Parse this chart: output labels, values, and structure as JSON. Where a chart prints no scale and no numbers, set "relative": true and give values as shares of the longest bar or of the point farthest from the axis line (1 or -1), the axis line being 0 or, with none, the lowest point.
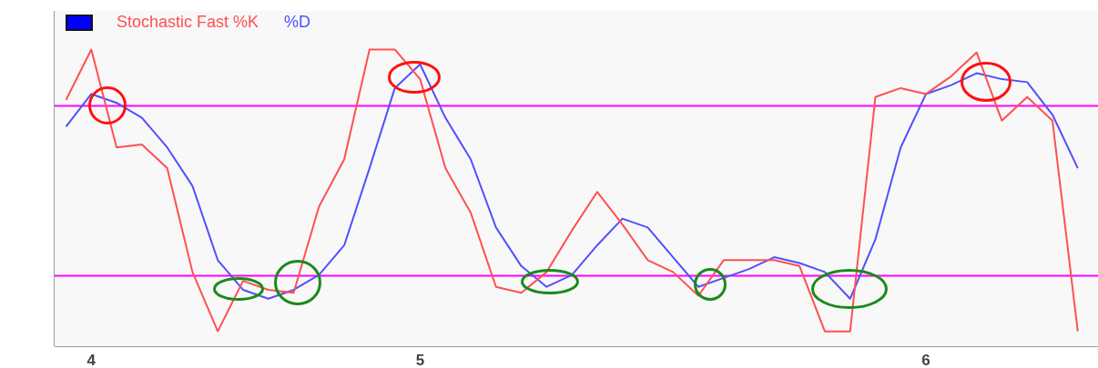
{
  "chart_data": {
    "type": "line",
    "relative": true,
    "legend": "top left",
    "marker": "none",
    "line_style": "solid",
    "categories": [
      null,
      "4",
      null,
      null,
      null,
      null,
      null,
      null,
      null,
      null,
      null,
      null,
      null,
      null,
      "5",
      null,
      null,
      null,
      null,
      null,
      null,
      null,
      null,
      null,
      null,
      null,
      null,
      null,
      null,
      null,
      null,
      null,
      null,
      null,
      "6",
      null,
      null,
      null,
      null,
      null,
      null
    ],
    "series": [
      {
        "name": "Stochastic Fast %K",
        "color": "#ff5050",
        "values": [
          0.83,
          1,
          0.67,
          0.68,
          0.6,
          0.25,
          0.05,
          0.22,
          0.19,
          0.18,
          0.47,
          0.63,
          1,
          1,
          0.9,
          0.6,
          0.45,
          0.2,
          0.18,
          0.25,
          0.39,
          0.52,
          0.41,
          0.29,
          0.25,
          0.17,
          0.29,
          0.29,
          0.29,
          0.27,
          0.05,
          0.05,
          0.84,
          0.87,
          0.85,
          0.91,
          0.99,
          0.76,
          0.84,
          0.76,
          0.05
        ]
      },
      {
        "name": "%D",
        "color": "#5050ff",
        "values": [
          0.74,
          0.85,
          0.82,
          0.77,
          0.67,
          0.54,
          0.29,
          0.19,
          0.16,
          0.19,
          0.24,
          0.34,
          0.6,
          0.87,
          0.95,
          0.77,
          0.63,
          0.4,
          0.27,
          0.2,
          0.24,
          0.34,
          0.43,
          0.4,
          0.3,
          0.2,
          0.23,
          0.26,
          0.3,
          0.28,
          0.25,
          0.16,
          0.36,
          0.67,
          0.85,
          0.88,
          0.92,
          0.9,
          0.89,
          0.78,
          0.6
        ]
      }
    ],
    "ref_lines": [
      {
        "axis": "y",
        "value": 0.81,
        "color": "#ff00ff",
        "line_style": "solid"
      },
      {
        "axis": "y",
        "value": 0.24,
        "color": "#ff00ff",
        "line_style": "solid"
      }
    ]
  }
}
